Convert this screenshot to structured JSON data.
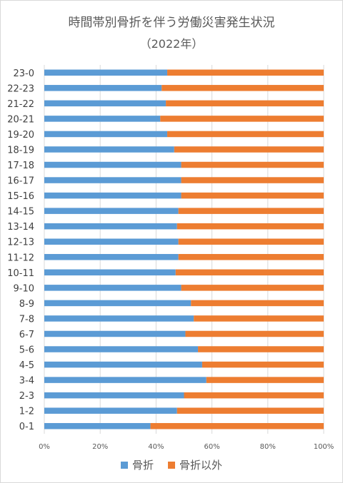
{
  "chart_data": {
    "type": "bar",
    "orientation": "horizontal",
    "stacked": "percent",
    "title": "時間帯別骨折を伴う労働災害発生状況",
    "subtitle": "（2022年）",
    "categories": [
      "0-1",
      "1-2",
      "2-3",
      "3-4",
      "4-5",
      "5-6",
      "6-7",
      "7-8",
      "8-9",
      "9-10",
      "10-11",
      "11-12",
      "12-13",
      "13-14",
      "14-15",
      "15-16",
      "16-17",
      "17-18",
      "18-19",
      "19-20",
      "20-21",
      "21-22",
      "22-23",
      "23-0"
    ],
    "series": [
      {
        "name": "骨折",
        "color": "#5b9bd5",
        "values": [
          38,
          47.5,
          50,
          58,
          56.5,
          55,
          50.5,
          53.5,
          52.5,
          49,
          47,
          48,
          48,
          47.5,
          48,
          49,
          49,
          49,
          46.5,
          44,
          41.5,
          43.5,
          42,
          44
        ]
      },
      {
        "name": "骨折以外",
        "color": "#ed7d31",
        "values": [
          62,
          52.5,
          50,
          42,
          43.5,
          45,
          49.5,
          46.5,
          47.5,
          51,
          53,
          52,
          52,
          52.5,
          52,
          51,
          51,
          51,
          53.5,
          56,
          58.5,
          56.5,
          58,
          56
        ]
      }
    ],
    "xticks": [
      "0%",
      "20%",
      "40%",
      "60%",
      "80%",
      "100%"
    ],
    "xlim": [
      0,
      100
    ],
    "grid": true,
    "legend": "bottom"
  }
}
